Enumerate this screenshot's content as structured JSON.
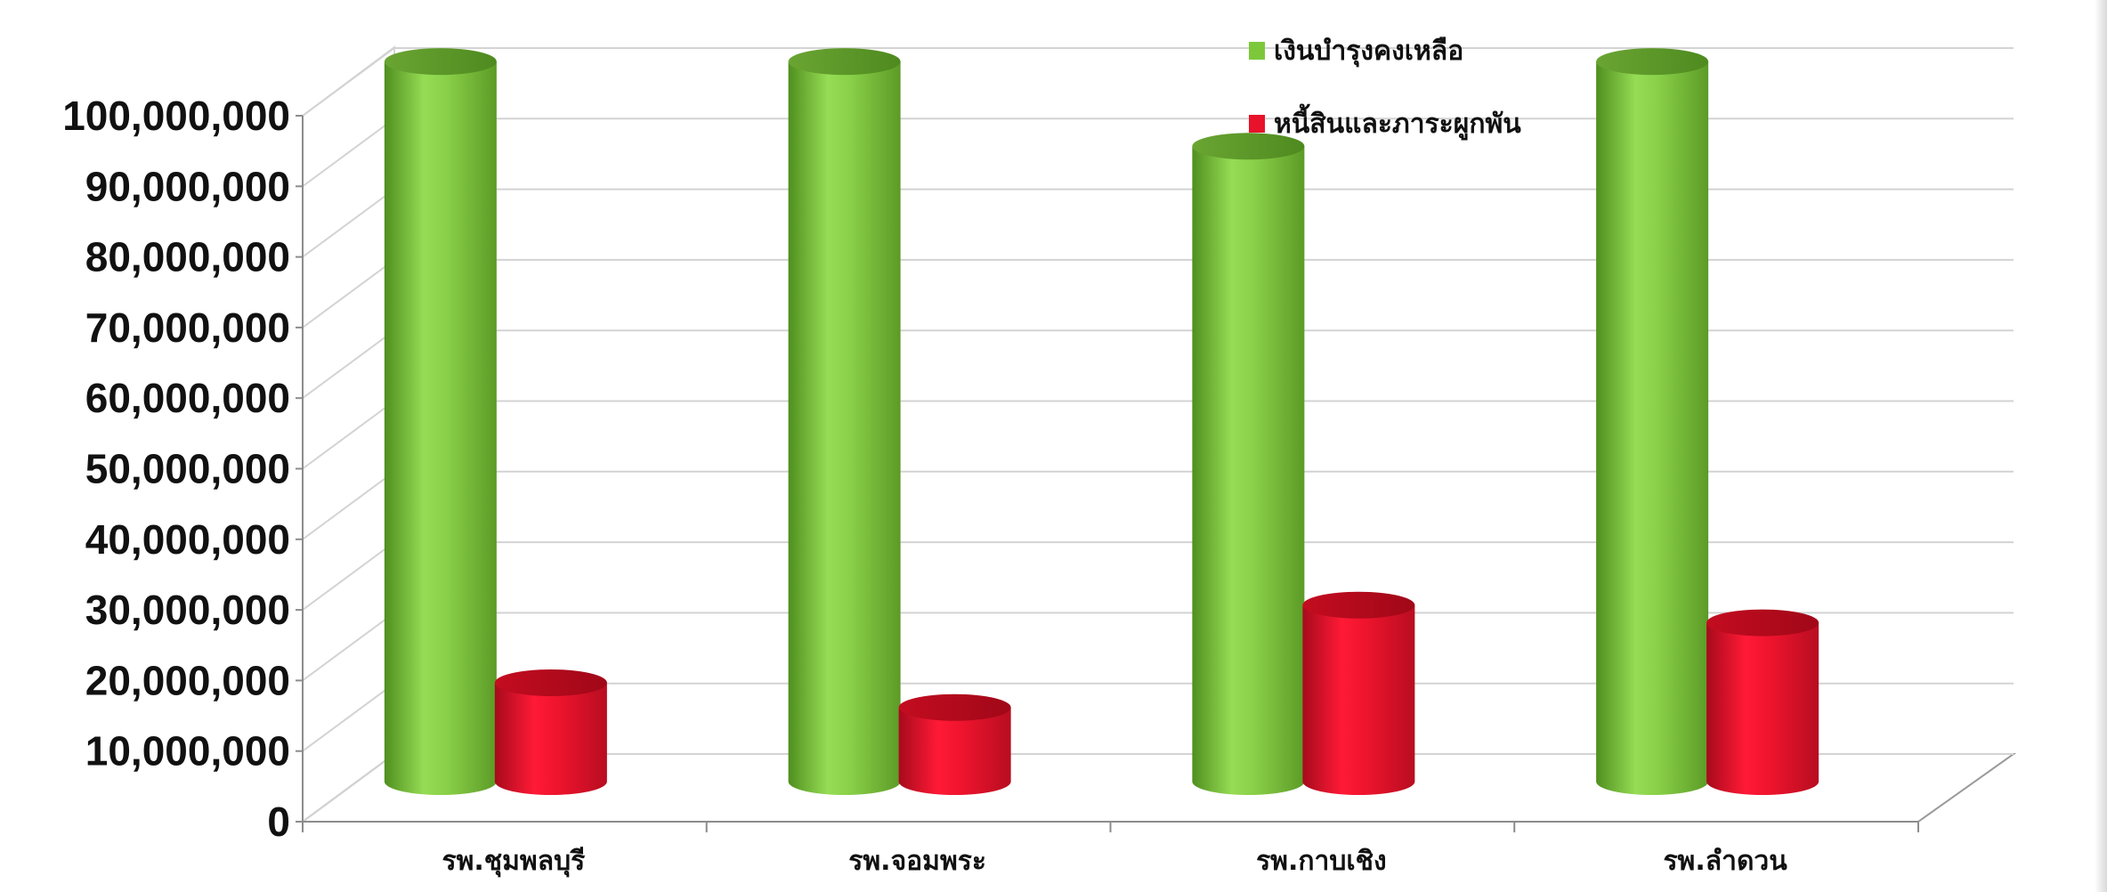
{
  "chart_data": {
    "type": "bar",
    "style": "3d-cylinder",
    "categories": [
      "รพ.ชุมพลบุรี",
      "รพ.จอมพระ",
      "รพ.กาบเชิง",
      "รพ.ลำดวน"
    ],
    "series": [
      {
        "name": "เงินบำรุงคงเหลือ",
        "color": "#7cc83a",
        "values": [
          102000000,
          102000000,
          90000000,
          102000000
        ]
      },
      {
        "name": "หนี้สินและภาระผูกพัน",
        "color": "#e8122a",
        "values": [
          14000000,
          10500000,
          25000000,
          22500000
        ]
      }
    ],
    "ylim": [
      0,
      100000000
    ],
    "yticks": [
      "0",
      "10,000,000",
      "20,000,000",
      "30,000,000",
      "40,000,000",
      "50,000,000",
      "60,000,000",
      "70,000,000",
      "80,000,000",
      "90,000,000",
      "100,000,000"
    ],
    "grid": true,
    "legend": "top-center",
    "title": "",
    "xlabel": "",
    "ylabel": ""
  }
}
